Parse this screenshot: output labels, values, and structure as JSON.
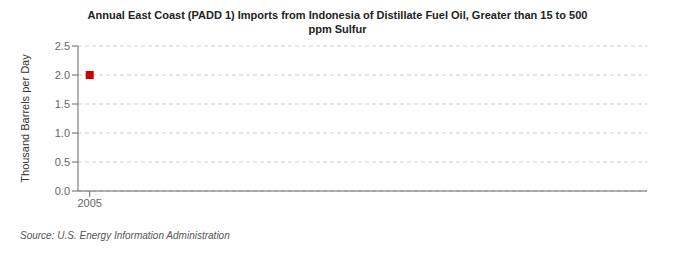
{
  "chart_data": {
    "type": "scatter",
    "title": "Annual East Coast (PADD 1) Imports from Indonesia of Distillate Fuel Oil, Greater than 15 to 500\nppm Sulfur",
    "ylabel": "Thousand Barrels per Day",
    "source": "Source: U.S. Energy Information Administration",
    "x": [
      2005
    ],
    "values": [
      2.0
    ],
    "color": "#cc0000",
    "marker": "square",
    "xlim": [
      2004.6,
      2024.0
    ],
    "ylim": [
      0.0,
      2.5
    ],
    "xticks": [
      2005
    ],
    "yticks": [
      {
        "value": 0.0,
        "label": "0.0"
      },
      0.5,
      {
        "value": 1.0,
        "label": "1.0"
      },
      1.5,
      {
        "value": 2.0,
        "label": "2.0"
      },
      2.5
    ],
    "grid": "y"
  }
}
